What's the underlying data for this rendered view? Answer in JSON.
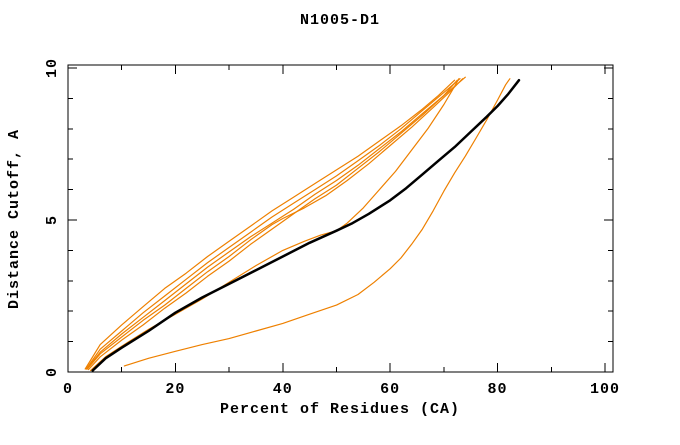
{
  "page": {
    "background": "#ffffff",
    "title": "N1005-D1"
  },
  "chart_data": {
    "type": "line",
    "title": "N1005-D1",
    "xlabel": "Percent of Residues (CA)",
    "ylabel": "Distance Cutoff, A",
    "xlim": [
      0,
      101.5
    ],
    "ylim": [
      0,
      10.1
    ],
    "x_major_ticks": [
      0,
      20,
      40,
      60,
      80,
      100
    ],
    "x_minor_ticks": [
      10,
      30,
      50,
      70,
      90
    ],
    "y_major_ticks": [
      0,
      5,
      10
    ],
    "y_minor_ticks": [
      1,
      2,
      3,
      4,
      6,
      7,
      8,
      9
    ],
    "grid": "off",
    "legend": "none",
    "frame": "full-box-inward-ticks",
    "y_tick_labels_rotated": true,
    "colors": {
      "axis": "#000000",
      "orange_series": "#ee8000",
      "black_series": "#000000"
    },
    "series": [
      {
        "name": "orange-model-1-top",
        "color": "#ee8000",
        "width": 1.2,
        "points": [
          [
            3.2,
            0.1
          ],
          [
            6,
            0.9
          ],
          [
            10,
            1.55
          ],
          [
            14,
            2.15
          ],
          [
            18,
            2.75
          ],
          [
            22,
            3.25
          ],
          [
            26,
            3.8
          ],
          [
            30,
            4.3
          ],
          [
            34,
            4.8
          ],
          [
            38,
            5.3
          ],
          [
            42,
            5.75
          ],
          [
            46,
            6.2
          ],
          [
            50,
            6.65
          ],
          [
            54,
            7.1
          ],
          [
            58,
            7.6
          ],
          [
            62,
            8.1
          ],
          [
            66,
            8.65
          ],
          [
            69,
            9.1
          ],
          [
            72,
            9.6
          ]
        ]
      },
      {
        "name": "orange-model-2",
        "color": "#ee8000",
        "width": 1.2,
        "points": [
          [
            3.4,
            0.1
          ],
          [
            6,
            0.75
          ],
          [
            10,
            1.35
          ],
          [
            14,
            1.95
          ],
          [
            18,
            2.5
          ],
          [
            22,
            3.05
          ],
          [
            26,
            3.6
          ],
          [
            30,
            4.1
          ],
          [
            34,
            4.6
          ],
          [
            38,
            5.1
          ],
          [
            42,
            5.55
          ],
          [
            46,
            6.0
          ],
          [
            50,
            6.45
          ],
          [
            54,
            6.95
          ],
          [
            58,
            7.45
          ],
          [
            62,
            8.0
          ],
          [
            66,
            8.6
          ],
          [
            70,
            9.2
          ],
          [
            73,
            9.65
          ]
        ]
      },
      {
        "name": "orange-model-3",
        "color": "#ee8000",
        "width": 1.2,
        "points": [
          [
            3.5,
            0.1
          ],
          [
            6,
            0.65
          ],
          [
            10,
            1.25
          ],
          [
            14,
            1.8
          ],
          [
            18,
            2.35
          ],
          [
            22,
            2.9
          ],
          [
            26,
            3.45
          ],
          [
            30,
            3.95
          ],
          [
            34,
            4.45
          ],
          [
            38,
            4.9
          ],
          [
            42,
            5.35
          ],
          [
            46,
            5.85
          ],
          [
            50,
            6.3
          ],
          [
            54,
            6.8
          ],
          [
            58,
            7.35
          ],
          [
            62,
            7.9
          ],
          [
            66,
            8.5
          ],
          [
            70,
            9.1
          ],
          [
            74,
            9.7
          ]
        ]
      },
      {
        "name": "orange-model-4",
        "color": "#ee8000",
        "width": 1.2,
        "points": [
          [
            3.6,
            0.1
          ],
          [
            6,
            0.6
          ],
          [
            10,
            1.15
          ],
          [
            14,
            1.7
          ],
          [
            18,
            2.2
          ],
          [
            22,
            2.75
          ],
          [
            26,
            3.3
          ],
          [
            30,
            3.8
          ],
          [
            34,
            4.35
          ],
          [
            38,
            4.85
          ],
          [
            40,
            5.05
          ],
          [
            44,
            5.4
          ],
          [
            48,
            5.8
          ],
          [
            52,
            6.3
          ],
          [
            56,
            6.85
          ],
          [
            60,
            7.45
          ],
          [
            64,
            8.05
          ],
          [
            68,
            8.7
          ],
          [
            71,
            9.2
          ],
          [
            73.5,
            9.65
          ]
        ]
      },
      {
        "name": "orange-model-5",
        "color": "#ee8000",
        "width": 1.2,
        "points": [
          [
            3.8,
            0.08
          ],
          [
            6,
            0.5
          ],
          [
            10,
            1.05
          ],
          [
            14,
            1.55
          ],
          [
            18,
            2.1
          ],
          [
            22,
            2.6
          ],
          [
            26,
            3.15
          ],
          [
            30,
            3.65
          ],
          [
            34,
            4.2
          ],
          [
            38,
            4.7
          ],
          [
            42,
            5.2
          ],
          [
            46,
            5.7
          ],
          [
            50,
            6.15
          ],
          [
            54,
            6.7
          ],
          [
            58,
            7.25
          ],
          [
            62,
            7.85
          ],
          [
            66,
            8.45
          ],
          [
            70,
            9.1
          ],
          [
            72.5,
            9.6
          ]
        ]
      },
      {
        "name": "orange-model-6-crossing",
        "color": "#ee8000",
        "width": 1.2,
        "points": [
          [
            4.2,
            0.05
          ],
          [
            7,
            0.5
          ],
          [
            10,
            0.85
          ],
          [
            15,
            1.4
          ],
          [
            20,
            1.9
          ],
          [
            25,
            2.4
          ],
          [
            30,
            2.95
          ],
          [
            35,
            3.5
          ],
          [
            40,
            4.0
          ],
          [
            44,
            4.3
          ],
          [
            47,
            4.5
          ],
          [
            50,
            4.65
          ],
          [
            52,
            4.9
          ],
          [
            55,
            5.4
          ],
          [
            58,
            6.0
          ],
          [
            61,
            6.6
          ],
          [
            64,
            7.3
          ],
          [
            67,
            8.0
          ],
          [
            70,
            8.8
          ],
          [
            72,
            9.4
          ],
          [
            72.8,
            9.65
          ]
        ]
      },
      {
        "name": "orange-model-7-low",
        "color": "#ee8000",
        "width": 1.2,
        "points": [
          [
            10.5,
            0.2
          ],
          [
            15,
            0.45
          ],
          [
            20,
            0.68
          ],
          [
            25,
            0.9
          ],
          [
            30,
            1.1
          ],
          [
            35,
            1.35
          ],
          [
            40,
            1.6
          ],
          [
            45,
            1.9
          ],
          [
            50,
            2.2
          ],
          [
            54,
            2.55
          ],
          [
            57,
            2.95
          ],
          [
            60,
            3.4
          ],
          [
            62,
            3.75
          ],
          [
            64,
            4.2
          ],
          [
            66,
            4.7
          ],
          [
            68,
            5.3
          ],
          [
            70,
            5.95
          ],
          [
            72,
            6.55
          ],
          [
            74,
            7.1
          ],
          [
            76,
            7.7
          ],
          [
            78,
            8.3
          ],
          [
            80,
            8.95
          ],
          [
            81.5,
            9.45
          ],
          [
            82.3,
            9.65
          ]
        ]
      },
      {
        "name": "black-reference",
        "color": "#000000",
        "width": 2.5,
        "points": [
          [
            4.6,
            0.05
          ],
          [
            7,
            0.45
          ],
          [
            10,
            0.8
          ],
          [
            15,
            1.35
          ],
          [
            20,
            1.95
          ],
          [
            25,
            2.45
          ],
          [
            30,
            2.9
          ],
          [
            35,
            3.35
          ],
          [
            40,
            3.8
          ],
          [
            45,
            4.25
          ],
          [
            50,
            4.65
          ],
          [
            53,
            4.9
          ],
          [
            56,
            5.2
          ],
          [
            60,
            5.65
          ],
          [
            63,
            6.05
          ],
          [
            66,
            6.5
          ],
          [
            69,
            6.95
          ],
          [
            72,
            7.4
          ],
          [
            75,
            7.9
          ],
          [
            78,
            8.4
          ],
          [
            80,
            8.75
          ],
          [
            82,
            9.15
          ],
          [
            84,
            9.6
          ]
        ]
      }
    ]
  }
}
